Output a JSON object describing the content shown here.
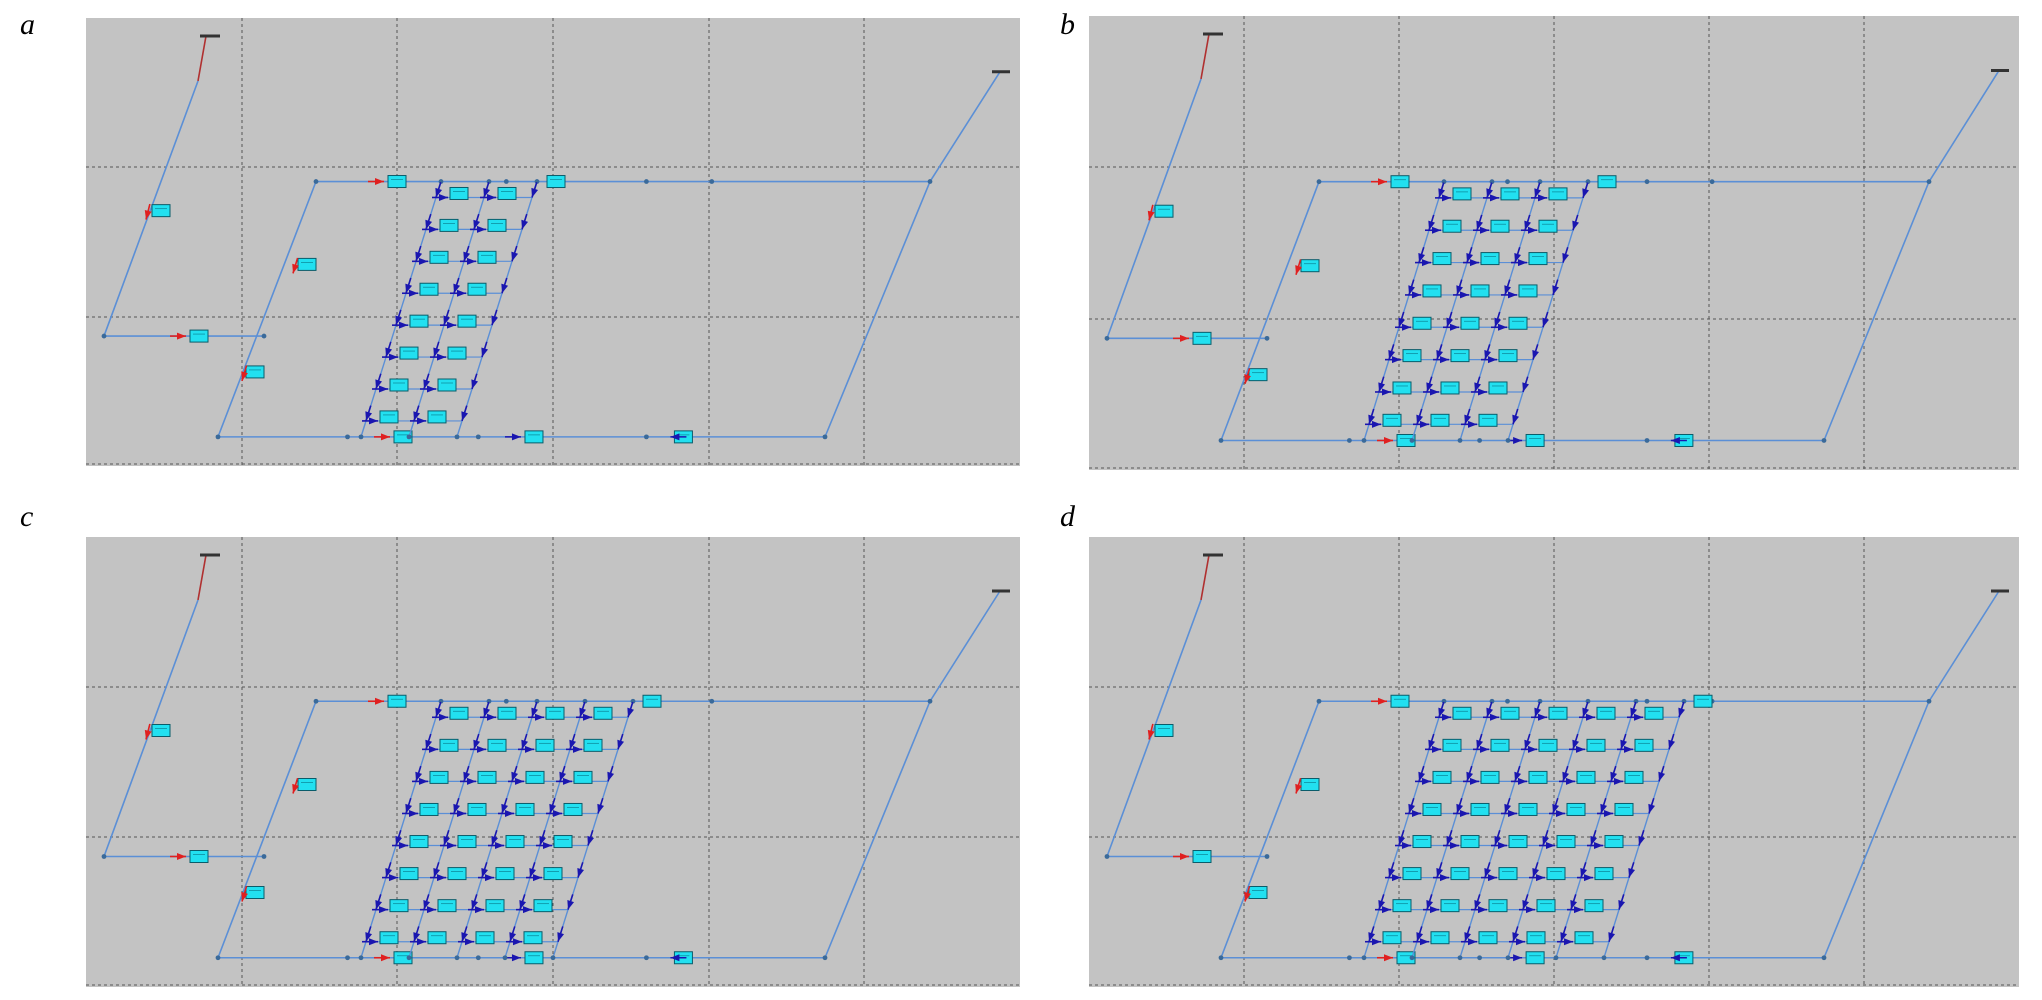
{
  "figure": {
    "panels": [
      {
        "id": "a",
        "label": "a",
        "grid_density": "3-column"
      },
      {
        "id": "b",
        "label": "b",
        "grid_density": "4-column"
      },
      {
        "id": "c",
        "label": "c",
        "grid_density": "5-column"
      },
      {
        "id": "d",
        "label": "d",
        "grid_density": "6-column"
      }
    ]
  },
  "colors": {
    "canvas_bg": "#c3c3c3",
    "pipe": "#5b8fd6",
    "feed_pipe": "#b03030",
    "node": "#3a6a9a",
    "box_fill": "#22e0f0",
    "box_border": "#0a5c6a",
    "arrow_blue": "#1a16b0",
    "arrow_red": "#e02020",
    "grid": "#555555"
  }
}
